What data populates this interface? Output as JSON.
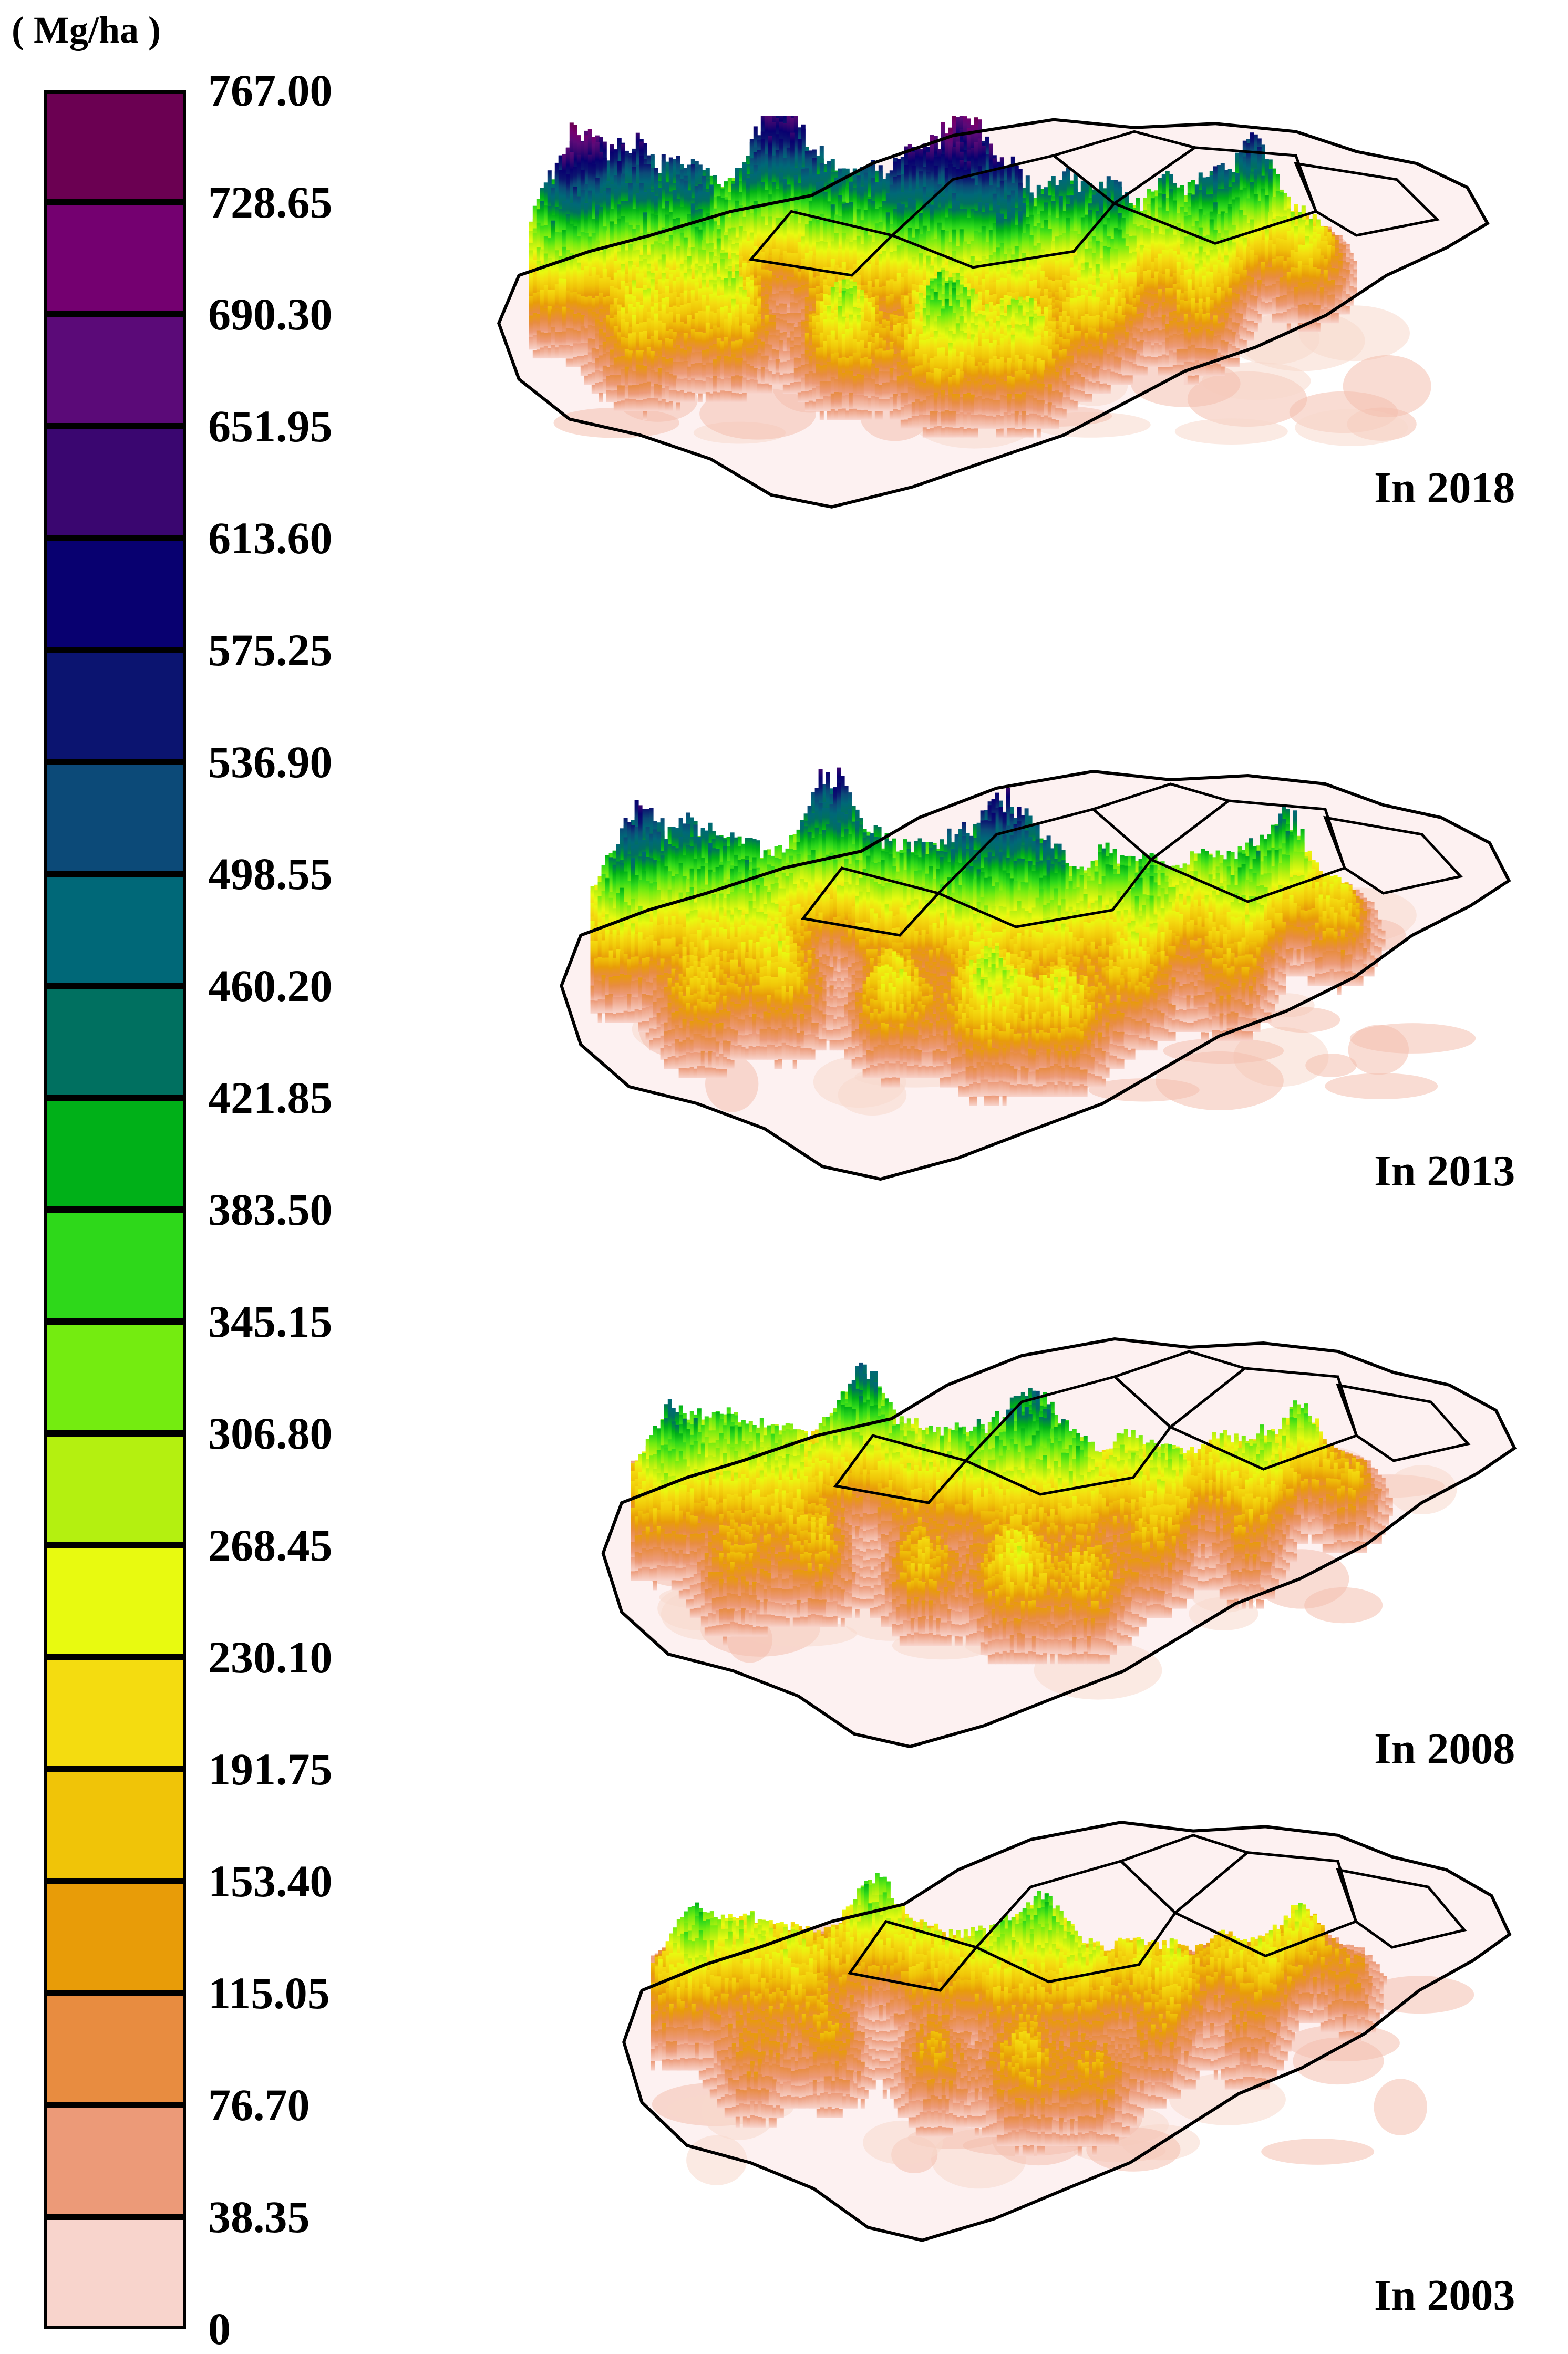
{
  "unit": "( Mg/ha )",
  "legend": {
    "ticks": [
      "767.00",
      "728.65",
      "690.30",
      "651.95",
      "613.60",
      "575.25",
      "536.90",
      "498.55",
      "460.20",
      "421.85",
      "383.50",
      "345.15",
      "306.80",
      "268.45",
      "230.10",
      "191.75",
      "153.40",
      "115.05",
      "76.70",
      "38.35",
      "0"
    ],
    "colors": [
      "#6b0052",
      "#740070",
      "#5b0a78",
      "#3a0670",
      "#080070",
      "#0b1470",
      "#0c4a78",
      "#006878",
      "#007060",
      "#00b018",
      "#2ed81a",
      "#74ec10",
      "#b4f010",
      "#e8fa10",
      "#f4dc10",
      "#f0c408",
      "#e89c08",
      "#e88c40",
      "#ec9a78",
      "#f8d4cc"
    ]
  },
  "maps": [
    {
      "year_label": "In 2018",
      "intensity": 1.0
    },
    {
      "year_label": "In 2013",
      "intensity": 0.82
    },
    {
      "year_label": "In 2008",
      "intensity": 0.66
    },
    {
      "year_label": "In 2003",
      "intensity": 0.52
    }
  ]
}
